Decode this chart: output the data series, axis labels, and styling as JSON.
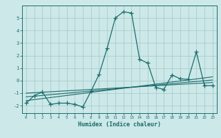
{
  "xlabel": "Humidex (Indice chaleur)",
  "ylabel": "",
  "background_color": "#cce8e8",
  "grid_color": "#aacccc",
  "line_color": "#1a6b6b",
  "xlim": [
    -0.5,
    23.5
  ],
  "ylim": [
    -2.6,
    6.0
  ],
  "yticks": [
    -2,
    -1,
    0,
    1,
    2,
    3,
    4,
    5
  ],
  "xticks": [
    0,
    1,
    2,
    3,
    4,
    5,
    6,
    7,
    8,
    9,
    10,
    11,
    12,
    13,
    14,
    15,
    16,
    17,
    18,
    19,
    20,
    21,
    22,
    23
  ],
  "series": {
    "main": {
      "x": [
        0,
        1,
        2,
        3,
        4,
        5,
        6,
        7,
        8,
        9,
        10,
        11,
        12,
        13,
        14,
        15,
        16,
        17,
        18,
        19,
        20,
        21,
        22,
        23
      ],
      "y": [
        -1.8,
        -1.2,
        -0.9,
        -1.9,
        -1.8,
        -1.8,
        -1.9,
        -2.1,
        -0.85,
        0.5,
        2.6,
        5.0,
        5.5,
        5.4,
        1.7,
        1.4,
        -0.55,
        -0.7,
        0.45,
        0.15,
        0.1,
        2.3,
        -0.4,
        -0.4
      ]
    },
    "reg1": {
      "x": [
        0,
        23
      ],
      "y": [
        -1.6,
        0.3
      ]
    },
    "reg2": {
      "x": [
        0,
        23
      ],
      "y": [
        -1.3,
        0.05
      ]
    },
    "reg3": {
      "x": [
        0,
        23
      ],
      "y": [
        -1.0,
        -0.15
      ]
    }
  }
}
